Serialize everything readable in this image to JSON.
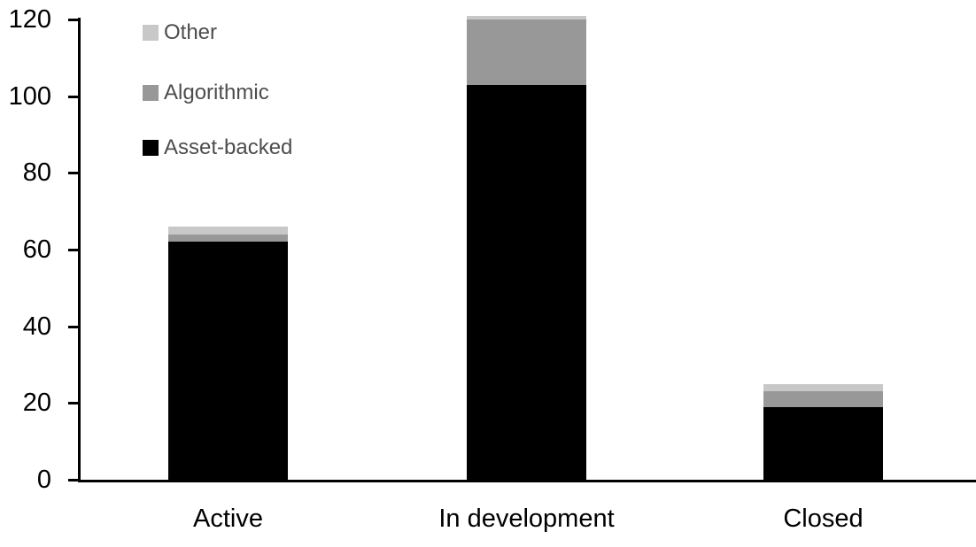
{
  "chart_data": {
    "type": "bar",
    "stacked": true,
    "title": "",
    "xlabel": "",
    "ylabel": "",
    "categories": [
      "Active",
      "In development",
      "Closed"
    ],
    "series": [
      {
        "name": "Other",
        "color": "#c8c8c8",
        "values": [
          2,
          1,
          2
        ]
      },
      {
        "name": "Algorithmic",
        "color": "#989898",
        "values": [
          2,
          17,
          4
        ]
      },
      {
        "name": "Asset-backed",
        "color": "#000000",
        "values": [
          62,
          103,
          19
        ]
      }
    ],
    "stack_order_bottom_to_top": [
      "Asset-backed",
      "Algorithmic",
      "Other"
    ],
    "totals": [
      66,
      121,
      25
    ],
    "ylim": [
      0,
      120
    ],
    "yticks": [
      0,
      20,
      40,
      60,
      80,
      100,
      120
    ],
    "grid": false,
    "legend_position": "top-left",
    "colors": {
      "axis": "#000000",
      "tick_label": "#000000",
      "category_label": "#000000",
      "legend_text": "#4d4d4d",
      "background": "#ffffff"
    }
  }
}
